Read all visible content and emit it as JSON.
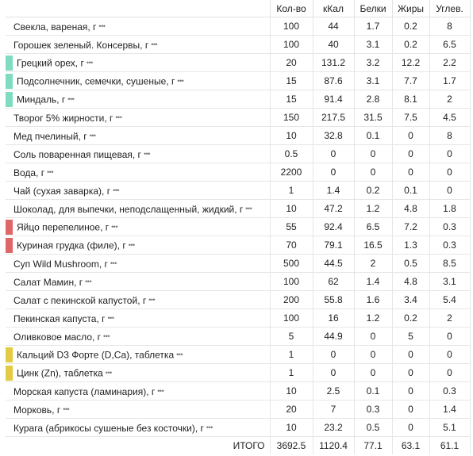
{
  "columns": [
    "Кол-во",
    "кКал",
    "Белки",
    "Жиры",
    "Углев."
  ],
  "colors": {
    "teal": "#7fdcc0",
    "red": "#e06767",
    "yellow": "#e3cc44"
  },
  "rows": [
    {
      "name": "Свекла, вареная, г",
      "marker": null,
      "qty": "100",
      "kcal": "44",
      "prot": "1.7",
      "fat": "0.2",
      "carb": "8"
    },
    {
      "name": "Горошек зеленый. Консервы, г",
      "marker": null,
      "qty": "100",
      "kcal": "40",
      "prot": "3.1",
      "fat": "0.2",
      "carb": "6.5"
    },
    {
      "name": "Грецкий орех, г",
      "marker": "teal",
      "qty": "20",
      "kcal": "131.2",
      "prot": "3.2",
      "fat": "12.2",
      "carb": "2.2"
    },
    {
      "name": "Подсолнечник, семечки, сушеные, г",
      "marker": "teal",
      "qty": "15",
      "kcal": "87.6",
      "prot": "3.1",
      "fat": "7.7",
      "carb": "1.7"
    },
    {
      "name": "Миндаль, г",
      "marker": "teal",
      "qty": "15",
      "kcal": "91.4",
      "prot": "2.8",
      "fat": "8.1",
      "carb": "2"
    },
    {
      "name": "Творог 5% жирности, г",
      "marker": null,
      "qty": "150",
      "kcal": "217.5",
      "prot": "31.5",
      "fat": "7.5",
      "carb": "4.5"
    },
    {
      "name": "Мед пчелиный, г",
      "marker": null,
      "qty": "10",
      "kcal": "32.8",
      "prot": "0.1",
      "fat": "0",
      "carb": "8"
    },
    {
      "name": "Соль поваренная пищевая, г",
      "marker": null,
      "qty": "0.5",
      "kcal": "0",
      "prot": "0",
      "fat": "0",
      "carb": "0"
    },
    {
      "name": "Вода, г",
      "marker": null,
      "qty": "2200",
      "kcal": "0",
      "prot": "0",
      "fat": "0",
      "carb": "0"
    },
    {
      "name": "Чай (сухая заварка), г",
      "marker": null,
      "qty": "1",
      "kcal": "1.4",
      "prot": "0.2",
      "fat": "0.1",
      "carb": "0"
    },
    {
      "name": "Шоколад, для выпечки, неподслащенный, жидкий, г",
      "marker": null,
      "qty": "10",
      "kcal": "47.2",
      "prot": "1.2",
      "fat": "4.8",
      "carb": "1.8"
    },
    {
      "name": "Яйцо перепелиное, г",
      "marker": "red",
      "qty": "55",
      "kcal": "92.4",
      "prot": "6.5",
      "fat": "7.2",
      "carb": "0.3"
    },
    {
      "name": "Куриная грудка (филе), г",
      "marker": "red",
      "qty": "70",
      "kcal": "79.1",
      "prot": "16.5",
      "fat": "1.3",
      "carb": "0.3"
    },
    {
      "name": "Суп Wild Mushroom, г",
      "marker": null,
      "qty": "500",
      "kcal": "44.5",
      "prot": "2",
      "fat": "0.5",
      "carb": "8.5"
    },
    {
      "name": "Салат Мамин, г",
      "marker": null,
      "qty": "100",
      "kcal": "62",
      "prot": "1.4",
      "fat": "4.8",
      "carb": "3.1"
    },
    {
      "name": "Салат с пекинской капустой, г",
      "marker": null,
      "qty": "200",
      "kcal": "55.8",
      "prot": "1.6",
      "fat": "3.4",
      "carb": "5.4"
    },
    {
      "name": "Пекинская капуста, г",
      "marker": null,
      "qty": "100",
      "kcal": "16",
      "prot": "1.2",
      "fat": "0.2",
      "carb": "2"
    },
    {
      "name": "Оливковое масло, г",
      "marker": null,
      "qty": "5",
      "kcal": "44.9",
      "prot": "0",
      "fat": "5",
      "carb": "0"
    },
    {
      "name": "Кальций D3 Форте (D,Ca), таблетка",
      "marker": "yellow",
      "qty": "1",
      "kcal": "0",
      "prot": "0",
      "fat": "0",
      "carb": "0"
    },
    {
      "name": "Цинк (Zn), таблетка",
      "marker": "yellow",
      "qty": "1",
      "kcal": "0",
      "prot": "0",
      "fat": "0",
      "carb": "0"
    },
    {
      "name": "Морская капуста (ламинария), г",
      "marker": null,
      "qty": "10",
      "kcal": "2.5",
      "prot": "0.1",
      "fat": "0",
      "carb": "0.3"
    },
    {
      "name": "Морковь, г",
      "marker": null,
      "qty": "20",
      "kcal": "7",
      "prot": "0.3",
      "fat": "0",
      "carb": "1.4"
    },
    {
      "name": "Курага (абрикосы сушеные без косточки), г",
      "marker": null,
      "qty": "10",
      "kcal": "23.2",
      "prot": "0.5",
      "fat": "0",
      "carb": "5.1"
    }
  ],
  "total": {
    "label": "ИТОГО",
    "qty": "3692.5",
    "kcal": "1120.4",
    "prot": "77.1",
    "fat": "63.1",
    "carb": "61.1"
  },
  "more_glyph": "•••"
}
